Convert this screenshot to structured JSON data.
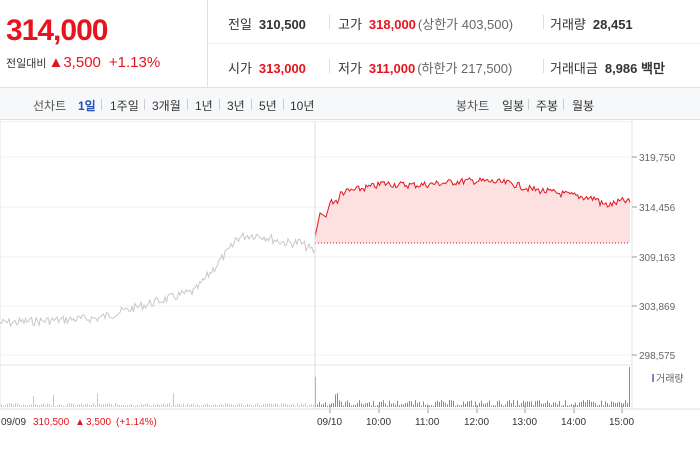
{
  "summary": {
    "price": "314,000",
    "change_label": "전일대비",
    "change_arrow": "▲",
    "change_amount": "3,500",
    "change_pct": "+1.13%"
  },
  "info": {
    "prev_close": {
      "label": "전일",
      "value": "310,500"
    },
    "high": {
      "label": "고가",
      "value": "318,000",
      "sub": "(상한가 403,500)"
    },
    "volume": {
      "label": "거래량",
      "value": "28,451"
    },
    "open": {
      "label": "시가",
      "value": "313,000"
    },
    "low": {
      "label": "저가",
      "value": "311,000",
      "sub": "(하한가 217,500)"
    },
    "amount": {
      "label": "거래대금",
      "value": "8,986 백만"
    }
  },
  "line_tabs": {
    "label": "선차트",
    "items": [
      "1일",
      "1주일",
      "3개월",
      "1년",
      "3년",
      "5년",
      "10년"
    ],
    "active": "1일"
  },
  "candle_tabs": {
    "label": "봉차트",
    "items": [
      "일봉",
      "주봉",
      "월봉"
    ]
  },
  "chart": {
    "y_ticks": [
      "319,750",
      "314,456",
      "309,163",
      "303,869",
      "298,575"
    ],
    "volume_legend": "거래량",
    "x_labels": [
      "09/09",
      "09/10",
      "10:00",
      "11:00",
      "12:00",
      "13:00",
      "14:00",
      "15:00"
    ],
    "prev_day_summary": {
      "price": "310,500",
      "arrow": "▲",
      "change": "3,500",
      "pct": "(+1.14%)"
    },
    "colors": {
      "today": "#e5141e",
      "prev": "#c8c8c8",
      "fill": "#fde0e0",
      "volume": "#8a7fc4"
    }
  }
}
